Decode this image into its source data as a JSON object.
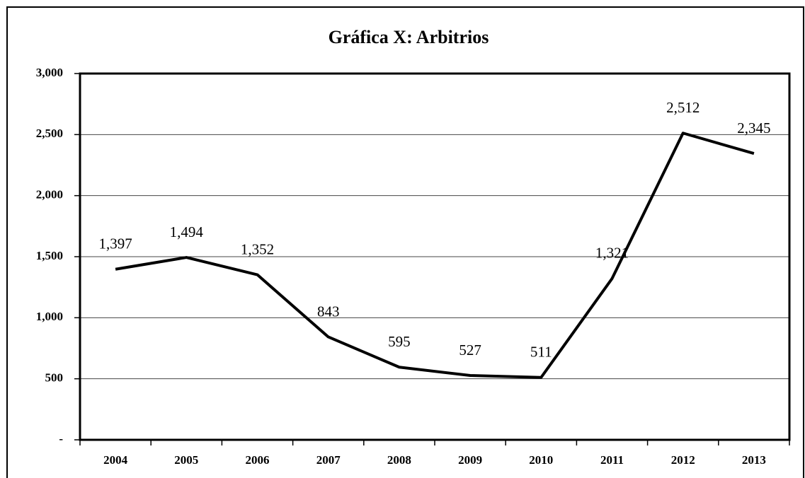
{
  "chart_data": {
    "type": "line",
    "title": "Gráfica X: Arbitrios",
    "categories": [
      "2004",
      "2005",
      "2006",
      "2007",
      "2008",
      "2009",
      "2010",
      "2011",
      "2012",
      "2013"
    ],
    "values": [
      1397,
      1494,
      1352,
      843,
      595,
      527,
      511,
      1321,
      2512,
      2345
    ],
    "value_labels": [
      "1,397",
      "1,494",
      "1,352",
      "843",
      "595",
      "527",
      "511",
      "1,321",
      "2,512",
      "2,345"
    ],
    "color": "#000000",
    "ylim": [
      0,
      3000
    ],
    "yticks": [
      {
        "value": 0,
        "label": "-"
      },
      500,
      {
        "value": 1000,
        "label": "1,000"
      },
      {
        "value": 1500,
        "label": "1,500"
      },
      {
        "value": 2000,
        "label": "2,000"
      },
      {
        "value": 2500,
        "label": "2,500"
      },
      {
        "value": 3000,
        "label": "3,000"
      }
    ],
    "grid": true
  }
}
